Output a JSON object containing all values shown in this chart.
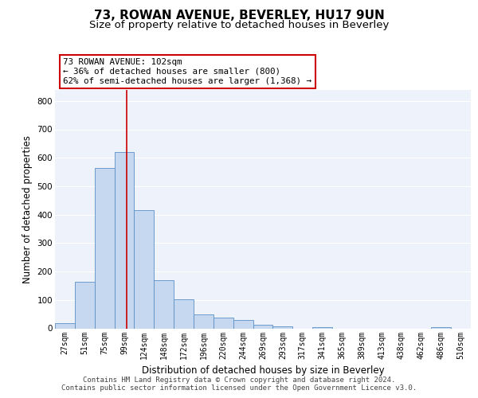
{
  "title": "73, ROWAN AVENUE, BEVERLEY, HU17 9UN",
  "subtitle": "Size of property relative to detached houses in Beverley",
  "xlabel": "Distribution of detached houses by size in Beverley",
  "ylabel": "Number of detached properties",
  "bins": [
    "27sqm",
    "51sqm",
    "75sqm",
    "99sqm",
    "124sqm",
    "148sqm",
    "172sqm",
    "196sqm",
    "220sqm",
    "244sqm",
    "269sqm",
    "293sqm",
    "317sqm",
    "341sqm",
    "365sqm",
    "389sqm",
    "413sqm",
    "438sqm",
    "462sqm",
    "486sqm",
    "510sqm"
  ],
  "values": [
    18,
    165,
    565,
    620,
    415,
    170,
    103,
    50,
    38,
    30,
    13,
    8,
    0,
    5,
    0,
    0,
    0,
    0,
    0,
    5,
    0
  ],
  "bar_color": "#c5d8f0",
  "bar_edge_color": "#5a8fc5",
  "background_color": "#eef2fb",
  "grid_color": "#ffffff",
  "annotation_text": "73 ROWAN AVENUE: 102sqm\n← 36% of detached houses are smaller (800)\n62% of semi-detached houses are larger (1,368) →",
  "annotation_box_color": "#ffffff",
  "annotation_box_edge": "#cc0000",
  "vline_color": "#cc0000",
  "ylim": [
    0,
    840
  ],
  "yticks": [
    0,
    100,
    200,
    300,
    400,
    500,
    600,
    700,
    800
  ],
  "footer_text": "Contains HM Land Registry data © Crown copyright and database right 2024.\nContains public sector information licensed under the Open Government Licence v3.0.",
  "title_fontsize": 11,
  "subtitle_fontsize": 9.5,
  "tick_fontsize": 7,
  "ylabel_fontsize": 8.5,
  "xlabel_fontsize": 8.5,
  "footer_fontsize": 6.5
}
